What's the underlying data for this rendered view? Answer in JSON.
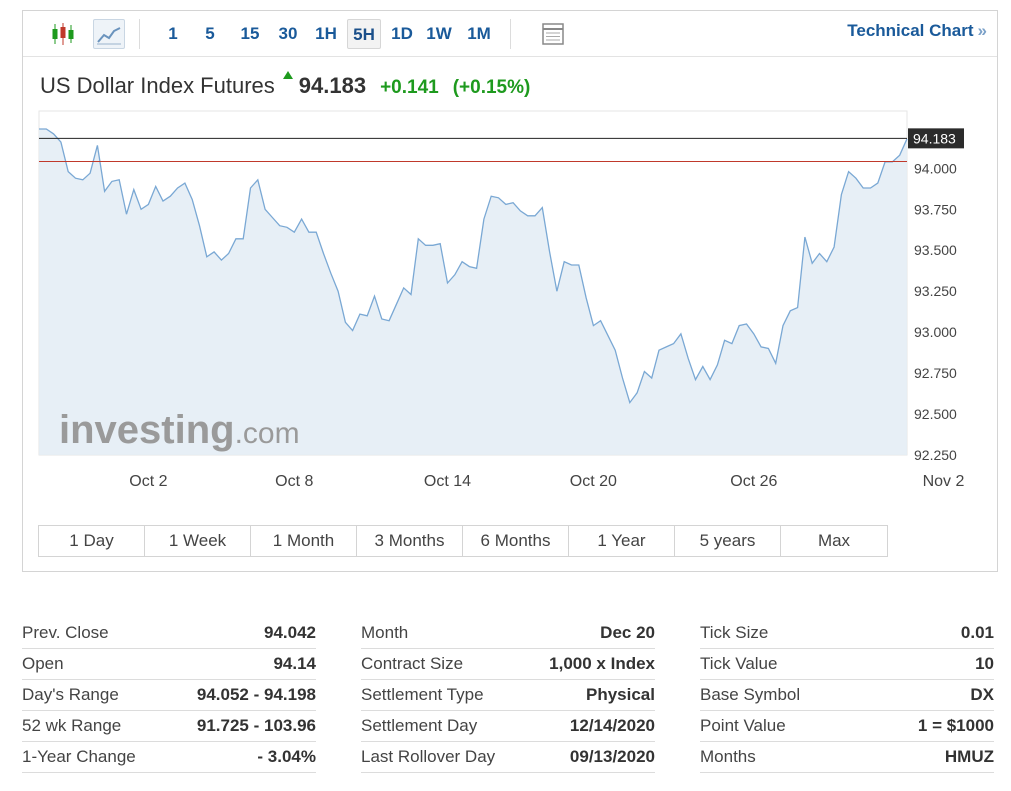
{
  "toolbar": {
    "intervals": [
      "1",
      "5",
      "15",
      "30",
      "1H",
      "5H",
      "1D",
      "1W",
      "1M"
    ],
    "active_interval": "5H",
    "technical_chart_label": "Technical Chart",
    "technical_chart_arrow": "»"
  },
  "quote": {
    "name": "US Dollar Index Futures",
    "last": "94.183",
    "change": "+0.141",
    "change_pct": "(+0.15%)"
  },
  "colors": {
    "accent": "#1a5a9a",
    "up": "#1e9a1e",
    "series_line": "#7aa8d4",
    "series_fill": "#e3ecf4",
    "prev_close_line": "#c0392b",
    "last_price_line": "#222222"
  },
  "chart_data": {
    "type": "area",
    "ylim": [
      92.25,
      94.35
    ],
    "yticks": [
      92.25,
      92.5,
      92.75,
      93.0,
      93.25,
      93.5,
      93.75,
      94.0
    ],
    "ytick_labels": [
      "92.250",
      "92.500",
      "92.750",
      "93.000",
      "93.250",
      "93.500",
      "93.750",
      "94.000"
    ],
    "xlabels": [
      "Oct 2",
      "Oct 8",
      "Oct 14",
      "Oct 20",
      "Oct 26",
      "Nov 2"
    ],
    "xlabel_index": [
      15,
      35,
      56,
      76,
      98,
      124
    ],
    "last_price": 94.183,
    "last_price_label": "94.183",
    "reference_line": 94.042,
    "grid": false,
    "values": [
      94.24,
      94.24,
      94.21,
      94.16,
      93.98,
      93.94,
      93.93,
      93.97,
      94.14,
      93.86,
      93.92,
      93.93,
      93.72,
      93.87,
      93.75,
      93.78,
      93.89,
      93.8,
      93.83,
      93.88,
      93.91,
      93.81,
      93.65,
      93.46,
      93.49,
      93.44,
      93.48,
      93.57,
      93.57,
      93.88,
      93.93,
      93.75,
      93.7,
      93.65,
      93.64,
      93.61,
      93.69,
      93.61,
      93.61,
      93.48,
      93.36,
      93.25,
      93.06,
      93.01,
      93.11,
      93.1,
      93.22,
      93.08,
      93.07,
      93.17,
      93.27,
      93.23,
      93.57,
      93.53,
      93.53,
      93.54,
      93.3,
      93.35,
      93.43,
      93.4,
      93.39,
      93.69,
      93.83,
      93.82,
      93.78,
      93.79,
      93.74,
      93.71,
      93.71,
      93.76,
      93.49,
      93.25,
      93.43,
      93.41,
      93.41,
      93.21,
      93.04,
      93.07,
      92.98,
      92.89,
      92.72,
      92.57,
      92.63,
      92.76,
      92.72,
      92.89,
      92.91,
      92.93,
      92.99,
      92.84,
      92.71,
      92.79,
      92.71,
      92.8,
      92.95,
      92.93,
      93.04,
      93.05,
      92.99,
      92.91,
      92.9,
      92.81,
      93.04,
      93.13,
      93.15,
      93.58,
      93.42,
      93.48,
      93.43,
      93.52,
      93.84,
      93.98,
      93.94,
      93.88,
      93.88,
      93.91,
      94.04,
      94.04,
      94.08,
      94.18
    ]
  },
  "ranges": [
    "1 Day",
    "1 Week",
    "1 Month",
    "3 Months",
    "6 Months",
    "1 Year",
    "5 years",
    "Max"
  ],
  "stats": [
    [
      {
        "label": "Prev. Close",
        "value": "94.042"
      },
      {
        "label": "Open",
        "value": "94.14"
      },
      {
        "label": "Day's Range",
        "value": "94.052 - 94.198"
      },
      {
        "label": "52 wk Range",
        "value": "91.725 - 103.96"
      },
      {
        "label": "1-Year Change",
        "value": "- 3.04%"
      }
    ],
    [
      {
        "label": "Month",
        "value": "Dec 20"
      },
      {
        "label": "Contract Size",
        "value": "1,000 x Index"
      },
      {
        "label": "Settlement Type",
        "value": "Physical"
      },
      {
        "label": "Settlement Day",
        "value": "12/14/2020"
      },
      {
        "label": "Last Rollover Day",
        "value": "09/13/2020"
      }
    ],
    [
      {
        "label": "Tick Size",
        "value": "0.01"
      },
      {
        "label": "Tick Value",
        "value": "10"
      },
      {
        "label": "Base Symbol",
        "value": "DX"
      },
      {
        "label": "Point Value",
        "value": "1 = $1000"
      },
      {
        "label": "Months",
        "value": "HMUZ"
      }
    ]
  ],
  "icons": {
    "candlestick": "candlestick-chart-icon",
    "line": "line-chart-icon",
    "table": "table-icon",
    "up": "up-arrow-icon"
  },
  "watermark": "investing.com"
}
